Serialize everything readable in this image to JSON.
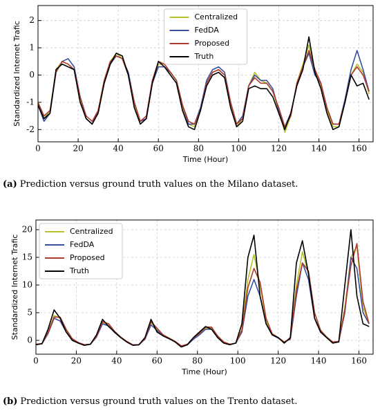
{
  "chart_data": [
    {
      "type": "line",
      "xlabel": "Time (Hour)",
      "ylabel": "Standardized Internet Trafic",
      "caption_label": "(a)",
      "caption": "Prediction versus ground truth values on the Milano dataset.",
      "legend": "upper center",
      "grid": true,
      "xlim": [
        0,
        167
      ],
      "xticks": [
        0,
        20,
        40,
        60,
        80,
        100,
        120,
        140,
        160
      ],
      "ylim": [
        -2.45,
        2.55
      ],
      "yticks": [
        -2,
        -1,
        0,
        1,
        2
      ],
      "x": [
        0,
        3,
        6,
        9,
        12,
        15,
        18,
        21,
        24,
        27,
        30,
        33,
        36,
        39,
        42,
        45,
        48,
        51,
        54,
        57,
        60,
        63,
        66,
        69,
        72,
        75,
        78,
        81,
        84,
        87,
        90,
        93,
        96,
        99,
        102,
        105,
        108,
        111,
        114,
        117,
        120,
        123,
        126,
        129,
        132,
        135,
        138,
        141,
        144,
        147,
        150,
        153,
        156,
        159,
        162,
        165
      ],
      "series": [
        {
          "name": "Centralized",
          "color": "#b5c22a",
          "values": [
            -1.0,
            -1.6,
            -1.3,
            0.2,
            0.5,
            0.4,
            0.2,
            -0.9,
            -1.6,
            -1.8,
            -1.3,
            -0.2,
            0.5,
            0.8,
            0.6,
            0.0,
            -1.1,
            -1.8,
            -1.6,
            -0.2,
            0.4,
            0.4,
            0.1,
            -0.2,
            -1.2,
            -1.8,
            -1.9,
            -1.3,
            -0.3,
            0.1,
            0.2,
            0.0,
            -1.1,
            -1.9,
            -1.6,
            -0.4,
            0.1,
            -0.2,
            -0.3,
            -0.6,
            -1.3,
            -2.1,
            -1.5,
            -0.3,
            0.4,
            1.1,
            0.1,
            -0.4,
            -1.3,
            -1.9,
            -1.9,
            -1.0,
            0.0,
            0.4,
            0.1,
            -0.7
          ]
        },
        {
          "name": "FedDA",
          "color": "#3a4ea0",
          "values": [
            -1.1,
            -1.7,
            -1.4,
            0.1,
            0.5,
            0.6,
            0.3,
            -0.8,
            -1.6,
            -1.8,
            -1.3,
            -0.3,
            0.4,
            0.7,
            0.6,
            0.1,
            -1.0,
            -1.7,
            -1.6,
            -0.3,
            0.3,
            0.3,
            0.1,
            -0.2,
            -1.1,
            -1.8,
            -1.8,
            -1.2,
            -0.2,
            0.2,
            0.3,
            0.1,
            -1.0,
            -1.8,
            -1.5,
            -0.4,
            0.0,
            -0.2,
            -0.2,
            -0.5,
            -1.3,
            -1.9,
            -1.4,
            -0.4,
            0.3,
            0.8,
            0.0,
            -0.3,
            -1.2,
            -1.8,
            -1.8,
            -0.9,
            0.2,
            0.9,
            0.2,
            -0.6
          ]
        },
        {
          "name": "Proposed",
          "color": "#b03a2e",
          "values": [
            -1.0,
            -1.5,
            -1.3,
            0.1,
            0.5,
            0.4,
            0.2,
            -0.8,
            -1.5,
            -1.7,
            -1.3,
            -0.2,
            0.5,
            0.7,
            0.6,
            0.0,
            -1.0,
            -1.7,
            -1.5,
            -0.2,
            0.5,
            0.4,
            0.1,
            -0.2,
            -1.1,
            -1.7,
            -1.8,
            -1.3,
            -0.3,
            0.1,
            0.2,
            0.0,
            -1.0,
            -1.8,
            -1.6,
            -0.4,
            -0.1,
            -0.3,
            -0.3,
            -0.6,
            -1.2,
            -1.9,
            -1.5,
            -0.3,
            0.3,
            0.9,
            0.2,
            -0.3,
            -1.2,
            -1.8,
            -1.8,
            -1.0,
            0.0,
            0.3,
            0.0,
            -0.6
          ]
        },
        {
          "name": "Truth",
          "color": "#000000",
          "values": [
            -1.1,
            -1.6,
            -1.4,
            0.2,
            0.4,
            0.3,
            0.2,
            -1.0,
            -1.6,
            -1.8,
            -1.4,
            -0.3,
            0.4,
            0.8,
            0.7,
            0.0,
            -1.2,
            -1.8,
            -1.6,
            -0.3,
            0.5,
            0.3,
            0.0,
            -0.3,
            -1.3,
            -1.9,
            -2.0,
            -1.3,
            -0.4,
            0.0,
            0.1,
            -0.1,
            -1.2,
            -1.9,
            -1.7,
            -0.5,
            -0.4,
            -0.5,
            -0.5,
            -0.8,
            -1.4,
            -2.0,
            -1.4,
            -0.4,
            0.2,
            1.4,
            0.1,
            -0.5,
            -1.4,
            -2.0,
            -1.9,
            -1.0,
            0.0,
            -0.4,
            -0.3,
            -0.9
          ]
        }
      ]
    },
    {
      "type": "line",
      "xlabel": "Time (Hour)",
      "ylabel": "Standardized Internet Trafic",
      "caption_label": "(b)",
      "caption": "Prediction versus ground truth values on the Trento dataset.",
      "legend": "upper left",
      "grid": true,
      "xlim": [
        0,
        167
      ],
      "xticks": [
        0,
        20,
        40,
        60,
        80,
        100,
        120,
        140,
        160
      ],
      "ylim": [
        -2.5,
        21.75
      ],
      "yticks": [
        0,
        5,
        10,
        15,
        20
      ],
      "x": [
        0,
        3,
        6,
        9,
        12,
        15,
        18,
        21,
        24,
        27,
        30,
        33,
        36,
        39,
        42,
        45,
        48,
        51,
        54,
        57,
        60,
        63,
        66,
        69,
        72,
        75,
        78,
        81,
        84,
        87,
        90,
        93,
        96,
        99,
        102,
        105,
        108,
        111,
        114,
        117,
        120,
        123,
        126,
        129,
        132,
        135,
        138,
        141,
        144,
        147,
        150,
        153,
        156,
        159,
        162,
        165
      ],
      "series": [
        {
          "name": "Centralized",
          "color": "#b5c22a",
          "values": [
            -0.7,
            -0.6,
            1.5,
            4.5,
            4.0,
            1.8,
            0.2,
            -0.4,
            -0.8,
            -0.7,
            0.8,
            3.2,
            2.8,
            1.6,
            0.6,
            -0.2,
            -0.8,
            -0.8,
            0.3,
            3.2,
            2.0,
            0.9,
            0.4,
            -0.2,
            -1.0,
            -0.8,
            0.3,
            1.2,
            2.2,
            2.2,
            0.8,
            -0.3,
            -0.7,
            -0.5,
            2.0,
            11.0,
            15.5,
            10.0,
            3.5,
            1.2,
            0.5,
            -0.3,
            0.3,
            10.0,
            16.0,
            12.0,
            5.0,
            1.8,
            0.6,
            -0.3,
            -0.2,
            6.0,
            15.0,
            17.0,
            6.0,
            3.0
          ]
        },
        {
          "name": "FedDA",
          "color": "#3a4ea0",
          "values": [
            -0.8,
            -0.6,
            1.2,
            4.0,
            3.5,
            1.5,
            0.2,
            -0.4,
            -0.8,
            -0.7,
            0.6,
            3.0,
            2.6,
            1.4,
            0.5,
            -0.2,
            -0.8,
            -0.8,
            0.2,
            2.8,
            1.8,
            0.8,
            0.3,
            -0.2,
            -1.0,
            -0.8,
            0.2,
            1.0,
            2.0,
            2.0,
            0.6,
            -0.3,
            -0.7,
            -0.5,
            1.5,
            8.0,
            11.0,
            8.0,
            3.0,
            1.0,
            0.4,
            -0.3,
            0.2,
            8.0,
            14.0,
            11.0,
            4.0,
            1.5,
            0.5,
            -0.3,
            -0.2,
            5.0,
            15.0,
            13.0,
            5.0,
            3.0
          ]
        },
        {
          "name": "Proposed",
          "color": "#b03a2e",
          "values": [
            -0.7,
            -0.6,
            1.4,
            4.2,
            4.2,
            2.0,
            0.3,
            -0.4,
            -0.8,
            -0.7,
            0.7,
            3.4,
            3.0,
            1.6,
            0.6,
            -0.2,
            -0.8,
            -0.8,
            0.3,
            3.4,
            2.2,
            1.0,
            0.4,
            -0.2,
            -1.0,
            -0.7,
            0.4,
            1.3,
            2.4,
            2.4,
            0.8,
            -0.3,
            -0.7,
            -0.5,
            1.8,
            9.5,
            13.0,
            10.5,
            4.0,
            1.2,
            0.5,
            -0.3,
            0.3,
            9.0,
            14.0,
            12.5,
            5.0,
            1.8,
            0.6,
            -0.3,
            -0.2,
            5.5,
            13.5,
            17.5,
            7.0,
            3.0
          ]
        },
        {
          "name": "Truth",
          "color": "#000000",
          "values": [
            -0.8,
            -0.6,
            2.0,
            5.5,
            4.0,
            1.5,
            0.0,
            -0.5,
            -0.9,
            -0.7,
            1.0,
            3.8,
            2.5,
            1.5,
            0.5,
            -0.3,
            -0.9,
            -0.8,
            0.5,
            3.8,
            1.5,
            0.8,
            0.3,
            -0.3,
            -1.2,
            -0.8,
            0.5,
            1.5,
            2.5,
            2.0,
            0.5,
            -0.5,
            -0.8,
            -0.5,
            3.0,
            15.0,
            19.0,
            8.0,
            3.0,
            1.0,
            0.5,
            -0.5,
            0.5,
            14.0,
            18.0,
            12.0,
            4.0,
            1.5,
            0.5,
            -0.5,
            -0.3,
            10.0,
            20.0,
            8.0,
            3.0,
            2.5
          ]
        }
      ]
    }
  ]
}
